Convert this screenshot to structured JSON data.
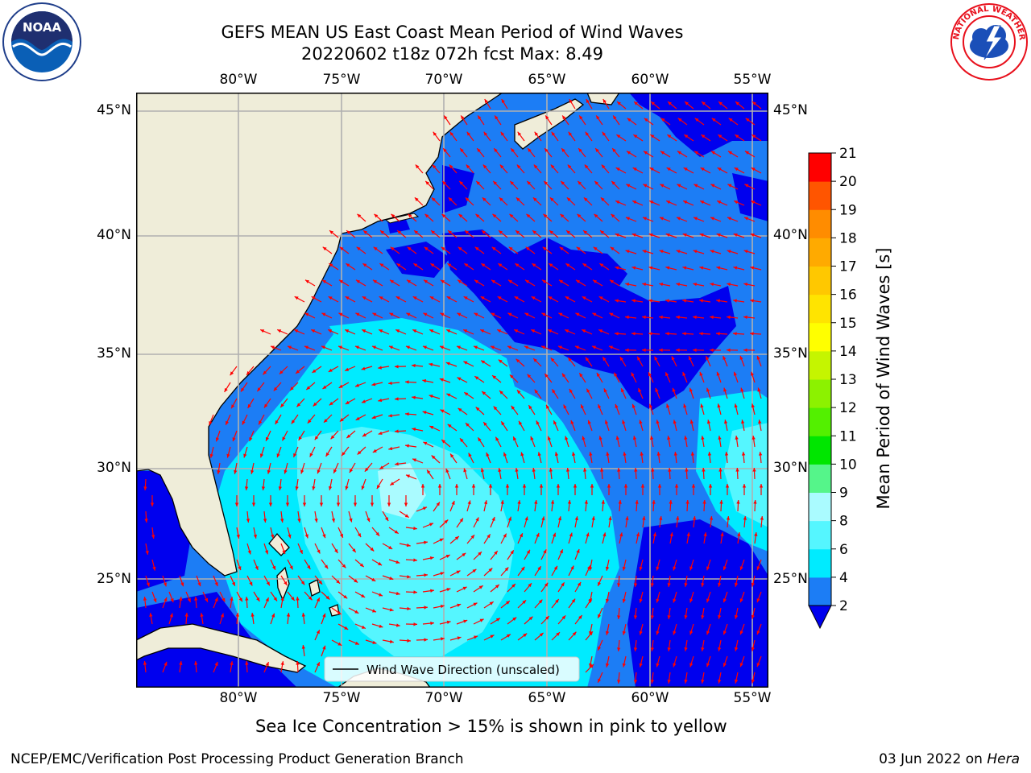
{
  "header": {
    "title_line1": "GEFS MEAN US East Coast Mean Period of Wind Waves",
    "title_line2": "20220602 t18z 072h fcst   Max: 8.49",
    "logo_left_text": "NOAA",
    "logo_right_text": "NATIONAL WEATHER SERVICE"
  },
  "map": {
    "lon_labels": [
      "80°W",
      "75°W",
      "70°W",
      "65°W",
      "60°W",
      "55°W"
    ],
    "lat_labels": [
      "45°N",
      "40°N",
      "35°N",
      "30°N",
      "25°N"
    ],
    "legend_label": "Wind Wave Direction (unscaled)",
    "colors": {
      "land": "#efedd9",
      "deep_blue": "#0000ee",
      "mid_blue": "#1c7df5",
      "cyan": "#00ebff",
      "light_cyan": "#55f6ff",
      "pale_cyan": "#aafbff",
      "arrow": "#ff0000"
    }
  },
  "colorbar": {
    "label": "Mean Period of Wind Waves [s]",
    "ticks": [
      "2",
      "4",
      "6",
      "8",
      "9",
      "10",
      "11",
      "12",
      "13",
      "14",
      "15",
      "16",
      "17",
      "18",
      "19",
      "20",
      "21"
    ],
    "colors": [
      "#1c7df5",
      "#00ebff",
      "#55f6ff",
      "#aafbff",
      "#55f58a",
      "#00e600",
      "#53f000",
      "#8cf200",
      "#c5f500",
      "#ffff00",
      "#ffe400",
      "#ffc800",
      "#ffaa00",
      "#ff8c00",
      "#ff5500",
      "#ff0000"
    ],
    "under_color": "#0000ee"
  },
  "captions": {
    "sea_ice": "Sea Ice Concentration > 15% is shown in pink to yellow",
    "org": "NCEP/EMC/Verification Post Processing Product Generation Branch",
    "date_prefix": "03 Jun 2022 on ",
    "date_machine": "Hera"
  }
}
